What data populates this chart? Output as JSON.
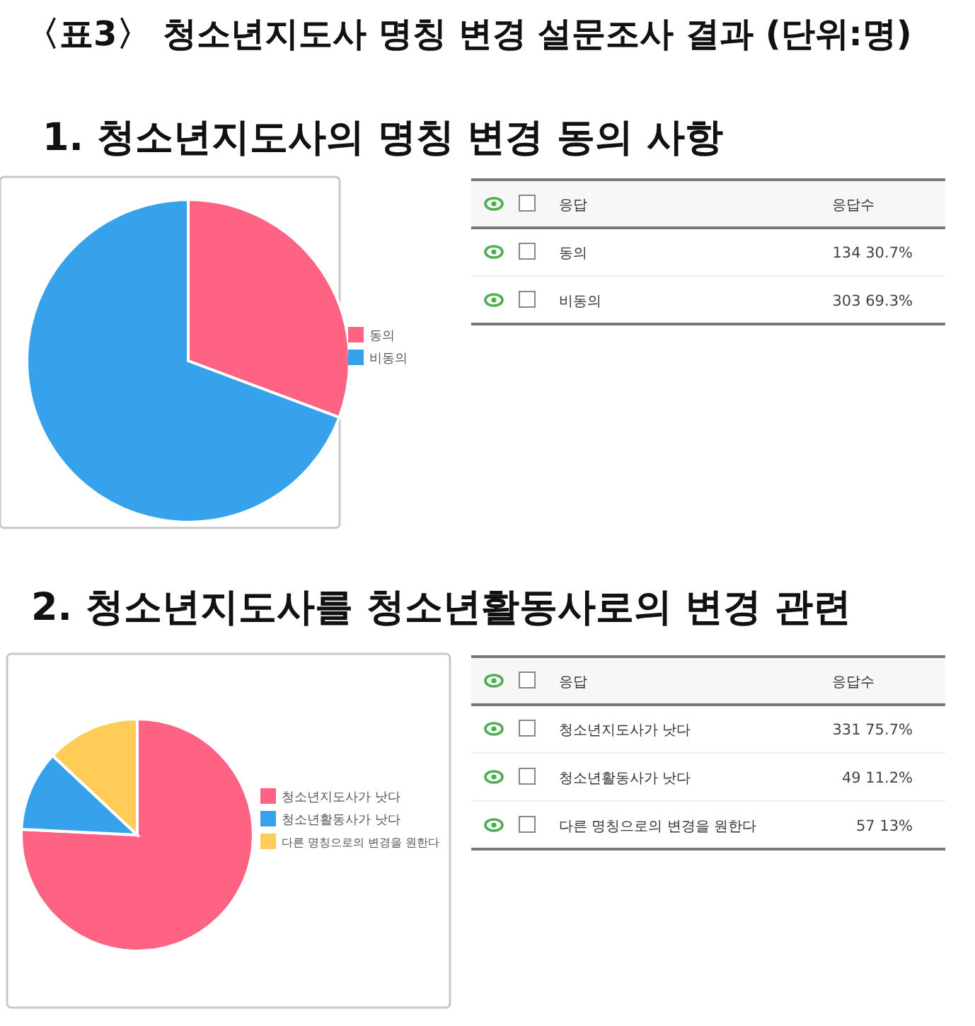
{
  "chart_data": [
    {
      "type": "pie",
      "title": "〈표3〉 청소년지도사 명칭 변경 설문조사 결과 (단위:명)",
      "subtitle": "1. 청소년지도사의 명칭 변경 동의 사항",
      "categories": [
        "동의",
        "비동의"
      ],
      "values": [
        30.7,
        69.3
      ],
      "colors": [
        "#ff6384",
        "#36a2eb"
      ],
      "legend": "right"
    },
    {
      "type": "other",
      "categories": [
        "동의",
        "비동의"
      ],
      "value_labels": [
        "134  30.7%",
        "303  69.3%"
      ],
      "annotations": [
        "응답",
        "응답수"
      ]
    },
    {
      "type": "pie",
      "title": "2. 청소년지도사를 청소년활동사로의 변경 관련",
      "categories": [
        "청소년지도사가 낫다",
        "청소년활동사가 낫다",
        "다른 명칭으로의 변경을 원한다"
      ],
      "values": [
        75.7,
        11.2,
        13
      ],
      "colors": [
        "#ff6384",
        "#36a2eb",
        "#ffcd56"
      ],
      "legend": "right"
    },
    {
      "type": "other",
      "categories": [
        "청소년지도사가 낫다",
        "청소년활동사가 낫다",
        "다른 명칭으로의 변경을 원한다"
      ],
      "value_labels": [
        "331  75.7%",
        "49  11.2%",
        "57  13%"
      ],
      "annotations": [
        "응답",
        "응답수"
      ]
    }
  ]
}
